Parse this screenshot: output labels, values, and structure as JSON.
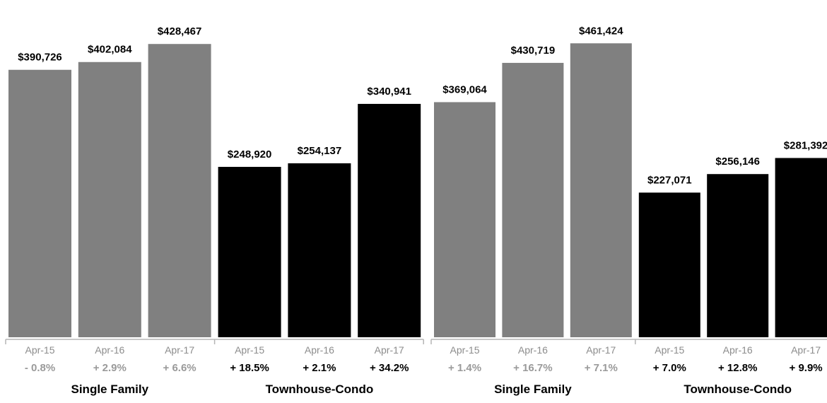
{
  "colors": {
    "single_family": "#808080",
    "townhouse_condo": "#000000",
    "single_family_text": "#9a9a9a",
    "townhouse_text": "#000000",
    "axis": "#b5b5b5"
  },
  "chart_data": [
    {
      "type": "bar",
      "ylim": [
        0,
        470000
      ],
      "grid": false,
      "legend": "none",
      "groups": [
        {
          "name": "Single Family",
          "color": "single_family",
          "categories": [
            "Apr-15",
            "Apr-16",
            "Apr-17"
          ],
          "values": [
            390726,
            402084,
            428467
          ],
          "value_labels": [
            "$390,726",
            "$402,084",
            "$428,467"
          ],
          "changes": [
            "- 0.8%",
            "+ 2.9%",
            "+ 6.6%"
          ]
        },
        {
          "name": "Townhouse-Condo",
          "color": "townhouse_condo",
          "categories": [
            "Apr-15",
            "Apr-16",
            "Apr-17"
          ],
          "values": [
            248920,
            254137,
            340941
          ],
          "value_labels": [
            "$248,920",
            "$254,137",
            "$340,941"
          ],
          "changes": [
            "+ 18.5%",
            "+ 2.1%",
            "+ 34.2%"
          ]
        }
      ]
    },
    {
      "type": "bar",
      "ylim": [
        0,
        505000
      ],
      "grid": false,
      "legend": "none",
      "groups": [
        {
          "name": "Single Family",
          "color": "single_family",
          "categories": [
            "Apr-15",
            "Apr-16",
            "Apr-17"
          ],
          "values": [
            369064,
            430719,
            461424
          ],
          "value_labels": [
            "$369,064",
            "$430,719",
            "$461,424"
          ],
          "changes": [
            "+ 1.4%",
            "+ 16.7%",
            "+ 7.1%"
          ]
        },
        {
          "name": "Townhouse-Condo",
          "color": "townhouse_condo",
          "categories": [
            "Apr-15",
            "Apr-16",
            "Apr-17"
          ],
          "values": [
            227071,
            256146,
            281392
          ],
          "value_labels": [
            "$227,071",
            "$256,146",
            "$281,392"
          ],
          "changes": [
            "+ 7.0%",
            "+ 12.8%",
            "+ 9.9%"
          ]
        }
      ]
    }
  ]
}
